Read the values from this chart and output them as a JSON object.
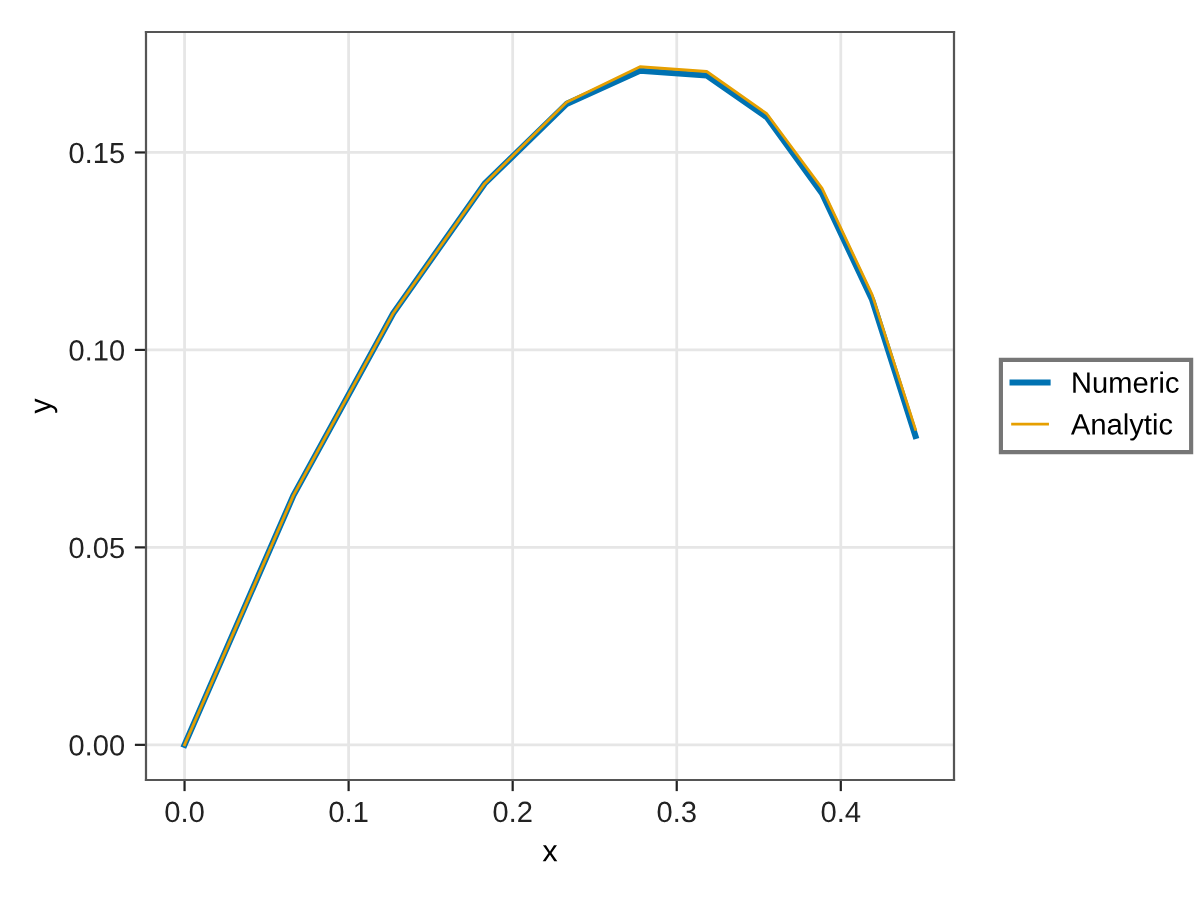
{
  "chart_data": {
    "type": "line",
    "xlabel": "x",
    "ylabel": "y",
    "x": [
      0.0,
      0.0663,
      0.1272,
      0.1829,
      0.2329,
      0.2776,
      0.3183,
      0.3549,
      0.3886,
      0.4191,
      0.4455
    ],
    "series": [
      {
        "name": "Numeric",
        "color": "#0072b2",
        "values": [
          0.0,
          0.0631,
          0.1093,
          0.1421,
          0.1623,
          0.1707,
          0.1695,
          0.1589,
          0.1396,
          0.1127,
          0.0782
        ]
      },
      {
        "name": "Analytic",
        "color": "#e69f00",
        "values": [
          0.0,
          0.0631,
          0.1093,
          0.1421,
          0.1627,
          0.1717,
          0.1705,
          0.1598,
          0.1409,
          0.114,
          0.0799
        ]
      }
    ],
    "xlim": [
      -0.0235,
      0.469
    ],
    "ylim": [
      -0.0089,
      0.1805
    ],
    "xticks": [
      {
        "value": 0,
        "label": "0.0"
      },
      0.1,
      0.2,
      0.3,
      0.4
    ],
    "yticks": [
      {
        "value": 0,
        "label": "0.00"
      },
      0.05,
      {
        "value": 0.1,
        "label": "0.10"
      },
      0.15
    ],
    "grid": true,
    "legend": "right",
    "line_style": "solid",
    "marker": "none"
  }
}
